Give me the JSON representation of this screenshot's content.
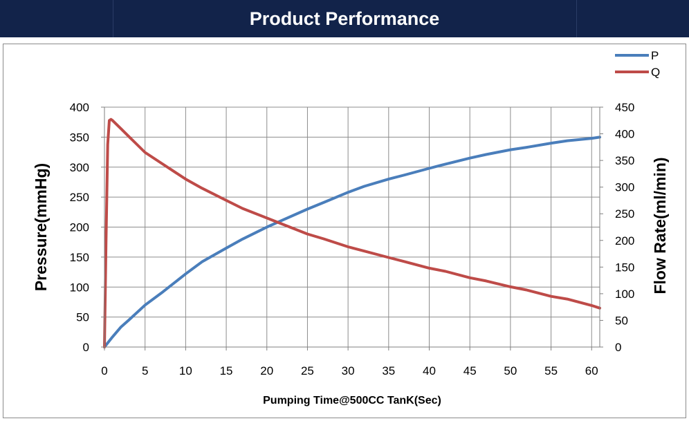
{
  "banner": {
    "title": "Product Performance"
  },
  "chart_data": {
    "type": "line",
    "title": "",
    "xlabel": "Pumping Time@500CC TanK(Sec)",
    "ylabel": "Pressure(mmHg)",
    "y2label": "Flow Rate(ml/min)",
    "xlim": [
      0,
      61
    ],
    "ylim": [
      0,
      400
    ],
    "y2lim": [
      0,
      450
    ],
    "x_ticks": [
      0,
      5,
      10,
      15,
      20,
      25,
      30,
      35,
      40,
      45,
      50,
      55,
      60
    ],
    "y_ticks": [
      0,
      50,
      100,
      150,
      200,
      250,
      300,
      350,
      400
    ],
    "y2_ticks": [
      0,
      50,
      100,
      150,
      200,
      250,
      300,
      350,
      400,
      450
    ],
    "grid": true,
    "legend_position": "top-right",
    "series": [
      {
        "name": "P",
        "axis": "left",
        "color": "#4a7ebb",
        "x": [
          0,
          1,
          2,
          3,
          5,
          7,
          10,
          12,
          15,
          17,
          20,
          22,
          25,
          27,
          30,
          32,
          35,
          37,
          40,
          42,
          45,
          47,
          50,
          52,
          55,
          57,
          60,
          61
        ],
        "y": [
          0,
          17,
          33,
          45,
          70,
          90,
          122,
          142,
          165,
          180,
          200,
          212,
          230,
          241,
          258,
          268,
          280,
          287,
          298,
          305,
          315,
          321,
          329,
          333,
          340,
          344,
          348,
          350
        ]
      },
      {
        "name": "Q",
        "axis": "right",
        "color": "#be4b48",
        "x": [
          0,
          0.2,
          0.4,
          0.6,
          0.8,
          1,
          2,
          3,
          4,
          5,
          7,
          10,
          12,
          15,
          17,
          20,
          22,
          25,
          27,
          30,
          32,
          35,
          37,
          40,
          42,
          45,
          47,
          50,
          52,
          55,
          57,
          60,
          61
        ],
        "y": [
          0,
          200,
          380,
          425,
          427,
          425,
          410,
          395,
          380,
          365,
          345,
          315,
          298,
          275,
          260,
          242,
          230,
          212,
          203,
          188,
          180,
          168,
          160,
          148,
          142,
          130,
          124,
          113,
          107,
          95,
          90,
          78,
          73
        ]
      }
    ]
  }
}
